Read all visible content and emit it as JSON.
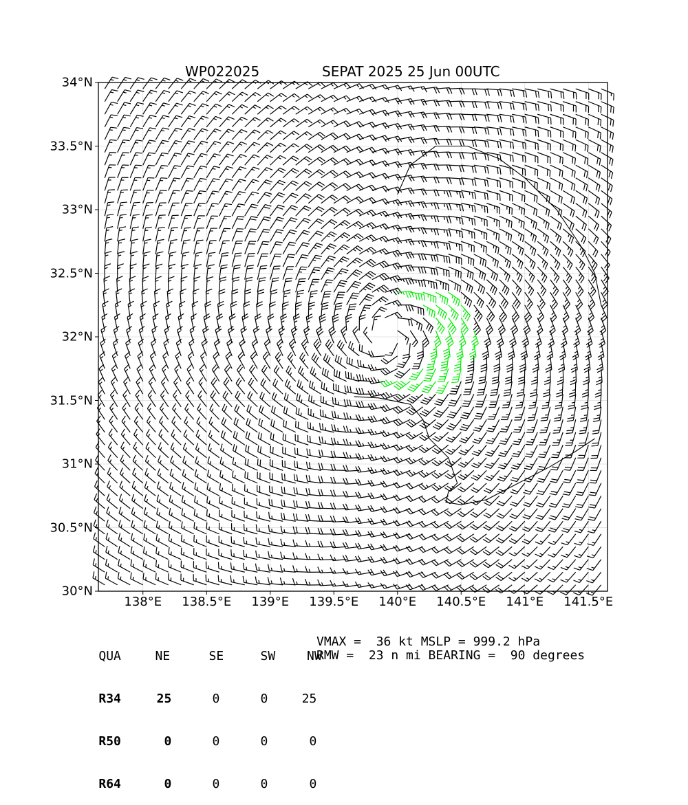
{
  "header": {
    "storm_id": "WP022025",
    "storm_info": "SEPAT 2025 25 Jun 00UTC"
  },
  "chart_data": {
    "type": "wind-barb-map",
    "title": "SEPAT 2025 25 Jun 00UTC",
    "xlim": [
      137.65,
      141.65
    ],
    "ylim": [
      30.0,
      34.0
    ],
    "xticks": [
      138.0,
      138.5,
      139.0,
      139.5,
      140.0,
      140.5,
      141.0,
      141.5
    ],
    "xtick_labels": [
      "138°E",
      "138.5°E",
      "139°E",
      "139.5°E",
      "140°E",
      "140.5°E",
      "141°E",
      "141.5°E"
    ],
    "yticks": [
      30.0,
      30.5,
      31.0,
      31.5,
      32.0,
      32.5,
      33.0,
      33.5,
      34.0
    ],
    "ytick_labels": [
      "30°N",
      "30.5°N",
      "31°N",
      "31.5°N",
      "32°N",
      "32.5°N",
      "33°N",
      "33.5°N",
      "34°N"
    ],
    "grid": true,
    "storm_center": {
      "lon": 139.93,
      "lat": 32.0
    },
    "barb_spacing_deg": 0.1,
    "highlight_color": "#00ee00",
    "barb_color": "#000000",
    "vmax_kt": 36,
    "rmw_nmi": 23
  },
  "radii_table": {
    "headers": [
      "QUA",
      "NE",
      "SE",
      "SW",
      "NW"
    ],
    "rows": [
      {
        "label": "R34",
        "values": [
          "25",
          "0",
          "0",
          "25"
        ]
      },
      {
        "label": "R50",
        "values": [
          "0",
          "0",
          "0",
          "0"
        ]
      },
      {
        "label": "R64",
        "values": [
          "0",
          "0",
          "0",
          "0"
        ]
      }
    ]
  },
  "stats": {
    "line1": "VMAX =  36 kt MSLP = 999.2 hPa",
    "line2": "RMW =  23 n mi BEARING =  90 degrees"
  }
}
